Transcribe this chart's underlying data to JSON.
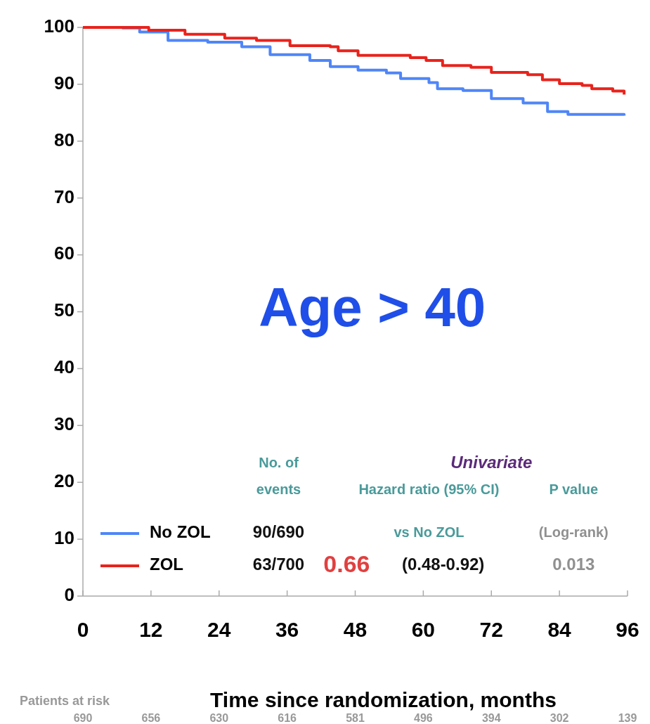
{
  "chart_data": {
    "type": "step",
    "xlabel": "Time since randomization, months",
    "xlim": [
      0,
      96
    ],
    "xticks": [
      0,
      12,
      24,
      36,
      48,
      60,
      72,
      84,
      96
    ],
    "ylim": [
      0,
      100
    ],
    "yticks": [
      0,
      10,
      20,
      30,
      40,
      50,
      60,
      70,
      80,
      90,
      100
    ],
    "grid": false,
    "legend": "bottom left",
    "marker": "none",
    "line_style": "solid",
    "series": [
      {
        "name": "No ZOL",
        "color": "#4f86f7",
        "x": [
          0,
          7,
          10,
          12,
          15,
          22,
          28,
          33,
          40,
          43.6,
          48.5,
          53.5,
          56,
          61,
          62.5,
          67,
          72,
          77.6,
          81.9,
          85.5,
          95.4
        ],
        "values": [
          100,
          99.9,
          99.2,
          99.2,
          97.7,
          97.4,
          96.6,
          95.2,
          94.2,
          93.1,
          92.5,
          92,
          91,
          90.3,
          89.2,
          88.9,
          87.5,
          86.7,
          85.2,
          84.7,
          84.5
        ]
      },
      {
        "name": "ZOL",
        "color": "#e8231c",
        "x": [
          0,
          10,
          11.6,
          18,
          25,
          30.6,
          36.5,
          43.6,
          45,
          48.5,
          57.7,
          60.5,
          63.4,
          68.4,
          72,
          78.4,
          81,
          84,
          88,
          89.7,
          93.4,
          95.4
        ],
        "values": [
          100,
          100,
          99.5,
          98.8,
          98.1,
          97.7,
          96.8,
          96.6,
          95.9,
          95.1,
          94.7,
          94.2,
          93.3,
          93,
          92.1,
          91.7,
          90.8,
          90.1,
          89.8,
          89.2,
          88.8,
          88.2
        ]
      }
    ],
    "annotations": [
      "Age > 40",
      "No. of",
      "events",
      "Univariate",
      "Hazard ratio (95% CI)",
      "P value",
      "vs No ZOL",
      "(Log-rank)",
      "90/690",
      "63/700",
      "0.66",
      "(0.48-0.92)",
      "0.013",
      "Patients at risk",
      "690",
      "656",
      "630",
      "616",
      "581",
      "496",
      "394",
      "302",
      "139"
    ]
  }
}
